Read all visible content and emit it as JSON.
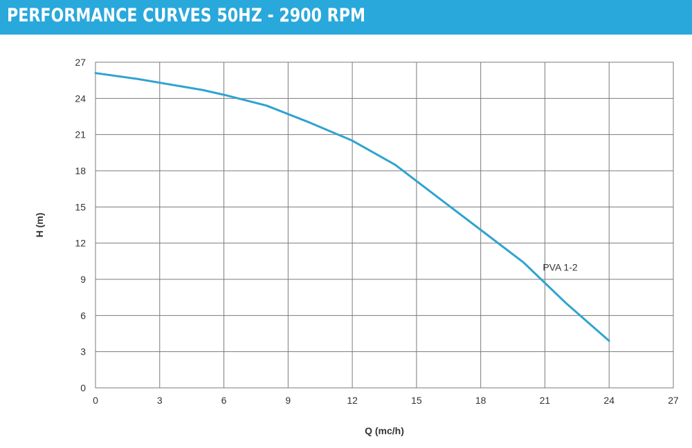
{
  "header": {
    "title": "PERFORMANCE CURVES 50HZ - 2900 RPM",
    "background_color": "#29a8dc",
    "text_color": "#ffffff"
  },
  "chart_data": {
    "type": "line",
    "title": "",
    "xlabel": "Q (mc/h)",
    "ylabel": "H (m)",
    "xlim": [
      0,
      27
    ],
    "ylim": [
      0,
      27
    ],
    "x_ticks": [
      0,
      3,
      6,
      9,
      12,
      15,
      18,
      21,
      24,
      27
    ],
    "y_ticks": [
      0,
      3,
      6,
      9,
      12,
      15,
      18,
      21,
      24,
      27
    ],
    "grid": true,
    "series": [
      {
        "name": "PVA 1-2",
        "color": "#2fa3d0",
        "x": [
          0,
          2,
          4,
          5,
          6,
          8,
          10,
          12,
          14,
          16,
          18,
          20,
          22,
          24
        ],
        "y": [
          26.1,
          25.6,
          25.0,
          24.7,
          24.3,
          23.4,
          22.0,
          20.5,
          18.5,
          15.8,
          13.1,
          10.4,
          7.0,
          3.9
        ]
      }
    ]
  }
}
